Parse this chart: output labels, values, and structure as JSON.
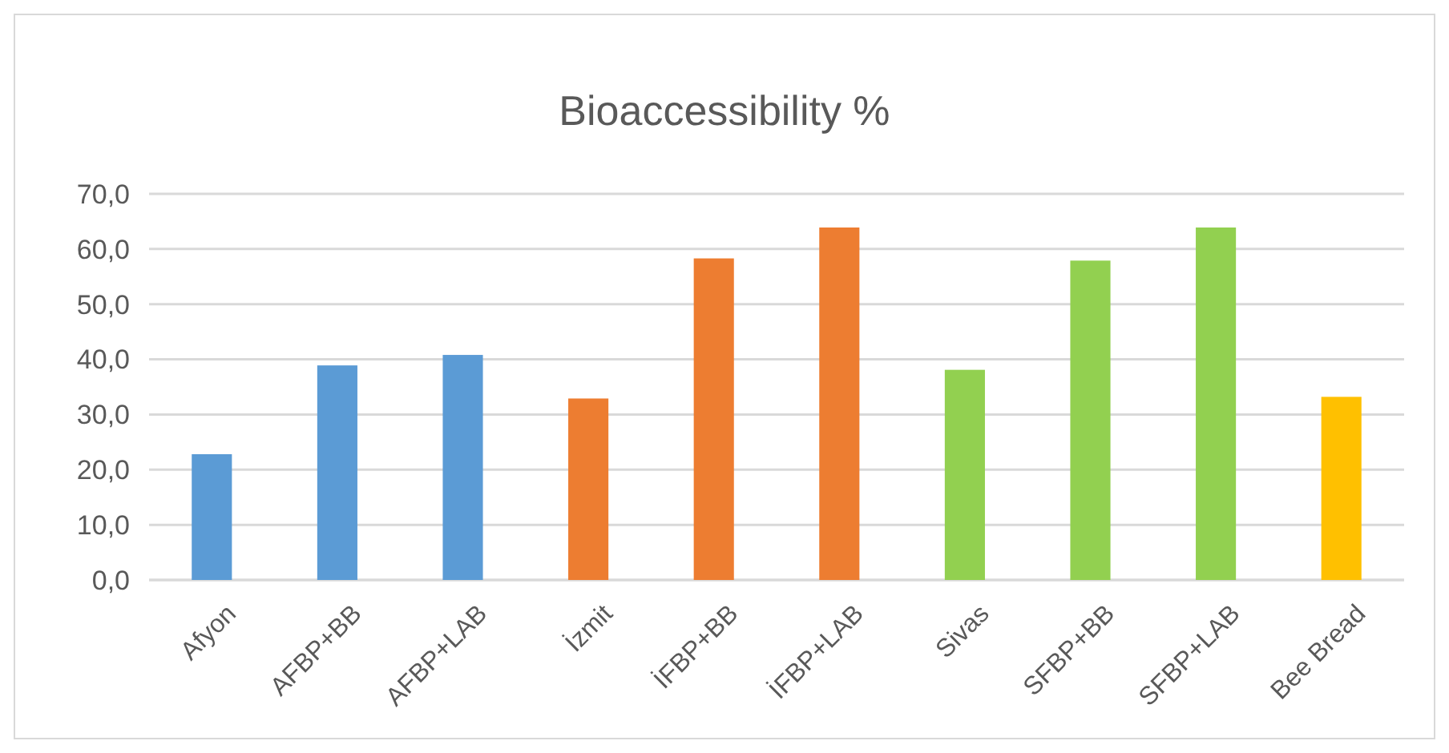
{
  "chart_data": {
    "type": "bar",
    "title": "Bioaccessibility %",
    "categories": [
      "Afyon",
      "AFBP+BB",
      "AFBP+LAB",
      "İzmit",
      "İFBP+BB",
      "İFBP+LAB",
      "Sivas",
      "SFBP+BB",
      "SFBP+LAB",
      "Bee Bread"
    ],
    "values": [
      22.8,
      38.9,
      40.8,
      32.9,
      58.3,
      63.9,
      38.1,
      57.9,
      63.9,
      33.2
    ],
    "colors": [
      "#5b9bd5",
      "#5b9bd5",
      "#5b9bd5",
      "#ed7d31",
      "#ed7d31",
      "#ed7d31",
      "#92d050",
      "#92d050",
      "#92d050",
      "#ffc000"
    ],
    "ylim": [
      0,
      70
    ],
    "yticks": [
      {
        "value": 0,
        "label": "0,0"
      },
      {
        "value": 10,
        "label": "10,0"
      },
      {
        "value": 20,
        "label": "20,0"
      },
      {
        "value": 30,
        "label": "30,0"
      },
      {
        "value": 40,
        "label": "40,0"
      },
      {
        "value": 50,
        "label": "50,0"
      },
      {
        "value": 60,
        "label": "60,0"
      },
      {
        "value": 70,
        "label": "70,0"
      }
    ],
    "grid": "y"
  }
}
